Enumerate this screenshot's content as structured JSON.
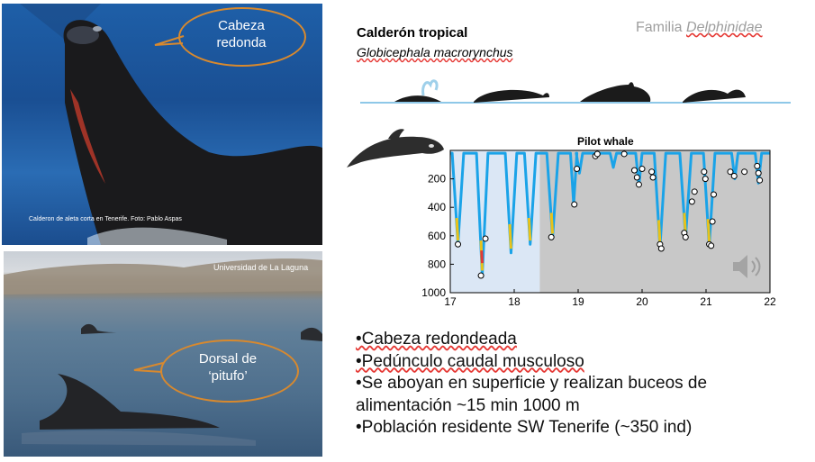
{
  "photo_top": {
    "bubble_line1": "Cabeza",
    "bubble_line2": "redonda",
    "credit": "Calderon de aleta corta en Tenerife. Foto: Pablo Aspas"
  },
  "photo_bottom": {
    "credit": "Universidad de La Laguna",
    "bubble_line1": "Dorsal de",
    "bubble_line2": "‘pitufo’"
  },
  "header": {
    "title": "Calderón tropical",
    "species": "Globicephala macrorynchus",
    "family_prefix": "Familia ",
    "family_name": "Delphinidae"
  },
  "bullets": {
    "b1": "•Cabeza redondeada",
    "b2": "•Pedúnculo caudal musculoso",
    "b3_line1": "•Se aboyan en superficie y realizan buceos de",
    "b3_line2": "alimentación ~15 min 1000 m",
    "b4": "•Población residente SW Tenerife (~350 ind)"
  },
  "icons": [
    "whale-silhouette-icon",
    "speaker-icon"
  ],
  "colors": {
    "bubble_border": "#d8892e",
    "day_shade": "#dbe7f5",
    "night_shade": "#c8c8c8",
    "surface_line": "#8ec8e8"
  },
  "chart_data": {
    "type": "line",
    "title": "Pilot whale",
    "xlabel": "",
    "ylabel": "",
    "xlim": [
      17,
      22
    ],
    "ylim": [
      1000,
      0
    ],
    "xticks": [
      "17",
      "18",
      "19",
      "20",
      "21",
      "22"
    ],
    "yticks": [
      "200",
      "400",
      "600",
      "800",
      "1000"
    ],
    "shaded_regions": [
      {
        "from": 17,
        "to": 18.4,
        "color": "#dbe7f5"
      },
      {
        "from": 18.4,
        "to": 22,
        "color": "#c8c8c8"
      }
    ],
    "dives": [
      {
        "x": 17.12,
        "depth": 660
      },
      {
        "x": 17.5,
        "depth": 880
      },
      {
        "x": 17.95,
        "depth": 720
      },
      {
        "x": 18.25,
        "depth": 660
      },
      {
        "x": 18.6,
        "depth": 610
      },
      {
        "x": 18.93,
        "depth": 380
      },
      {
        "x": 19.02,
        "depth": 160
      },
      {
        "x": 19.55,
        "depth": 120
      },
      {
        "x": 19.95,
        "depth": 250
      },
      {
        "x": 20.28,
        "depth": 680
      },
      {
        "x": 20.68,
        "depth": 610
      },
      {
        "x": 21.05,
        "depth": 670
      },
      {
        "x": 21.45,
        "depth": 200
      },
      {
        "x": 21.82,
        "depth": 230
      }
    ],
    "markers": [
      {
        "x": 17.12,
        "y": 660
      },
      {
        "x": 17.48,
        "y": 880
      },
      {
        "x": 17.55,
        "y": 620
      },
      {
        "x": 18.58,
        "y": 610
      },
      {
        "x": 18.94,
        "y": 380
      },
      {
        "x": 18.98,
        "y": 130
      },
      {
        "x": 19.27,
        "y": 40
      },
      {
        "x": 19.3,
        "y": 25
      },
      {
        "x": 19.72,
        "y": 25
      },
      {
        "x": 19.88,
        "y": 140
      },
      {
        "x": 19.92,
        "y": 190
      },
      {
        "x": 19.95,
        "y": 240
      },
      {
        "x": 20.0,
        "y": 130
      },
      {
        "x": 20.15,
        "y": 150
      },
      {
        "x": 20.17,
        "y": 190
      },
      {
        "x": 20.28,
        "y": 660
      },
      {
        "x": 20.3,
        "y": 690
      },
      {
        "x": 20.66,
        "y": 580
      },
      {
        "x": 20.68,
        "y": 610
      },
      {
        "x": 20.78,
        "y": 360
      },
      {
        "x": 20.82,
        "y": 290
      },
      {
        "x": 20.97,
        "y": 150
      },
      {
        "x": 20.99,
        "y": 200
      },
      {
        "x": 21.05,
        "y": 660
      },
      {
        "x": 21.08,
        "y": 670
      },
      {
        "x": 21.1,
        "y": 500
      },
      {
        "x": 21.12,
        "y": 310
      },
      {
        "x": 21.38,
        "y": 150
      },
      {
        "x": 21.44,
        "y": 180
      },
      {
        "x": 21.6,
        "y": 150
      },
      {
        "x": 21.8,
        "y": 110
      },
      {
        "x": 21.82,
        "y": 160
      },
      {
        "x": 21.84,
        "y": 210
      }
    ]
  }
}
